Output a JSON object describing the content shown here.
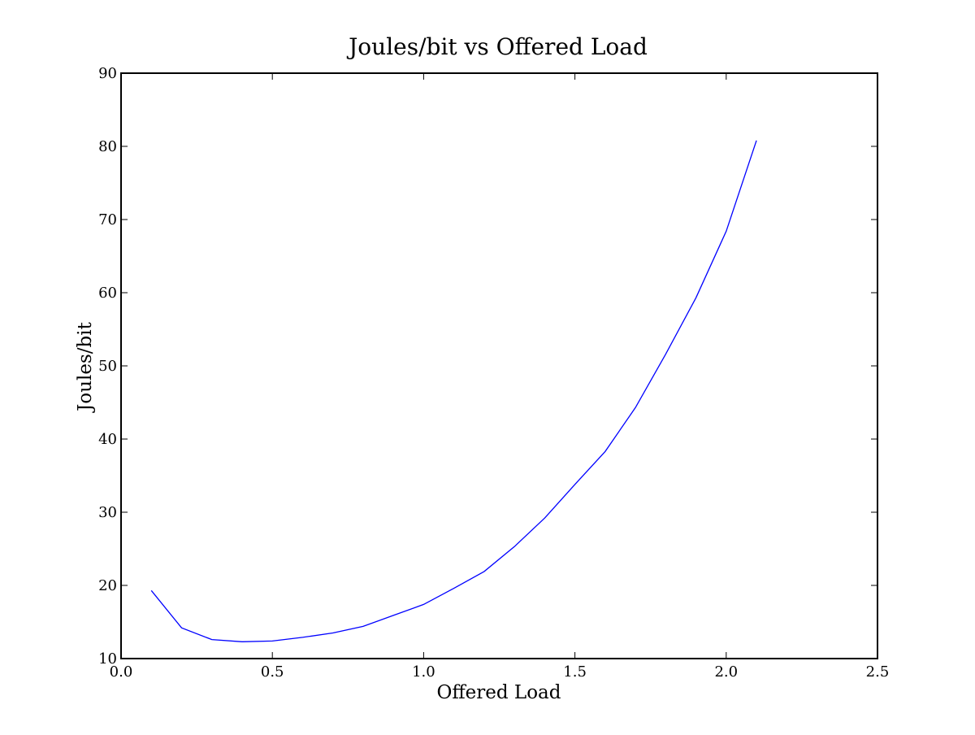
{
  "chart_data": {
    "type": "line",
    "title": "Joules/bit vs Offered Load",
    "xlabel": "Offered Load",
    "ylabel": "Joules/bit",
    "xlim": [
      0.0,
      2.5
    ],
    "ylim": [
      10,
      90
    ],
    "xticks": [
      0.0,
      0.5,
      1.0,
      1.5,
      2.0,
      2.5
    ],
    "xtick_labels": [
      "0.0",
      "0.5",
      "1.0",
      "1.5",
      "2.0",
      "2.5"
    ],
    "yticks": [
      10,
      20,
      30,
      40,
      50,
      60,
      70,
      80,
      90
    ],
    "ytick_labels": [
      "10",
      "20",
      "30",
      "40",
      "50",
      "60",
      "70",
      "80",
      "90"
    ],
    "grid": false,
    "legend": "none",
    "series": [
      {
        "color": "#0000ff",
        "x": [
          0.1,
          0.2,
          0.3,
          0.4,
          0.5,
          0.6,
          0.7,
          0.8,
          0.9,
          1.0,
          1.1,
          1.2,
          1.3,
          1.4,
          1.5,
          1.6,
          1.7,
          1.8,
          1.9,
          2.0,
          2.1
        ],
        "y": [
          19.3,
          14.2,
          12.6,
          12.3,
          12.4,
          12.9,
          13.5,
          14.4,
          15.9,
          17.4,
          19.6,
          21.9,
          25.3,
          29.2,
          33.8,
          38.3,
          44.3,
          51.6,
          59.3,
          68.4,
          80.8
        ]
      }
    ]
  }
}
